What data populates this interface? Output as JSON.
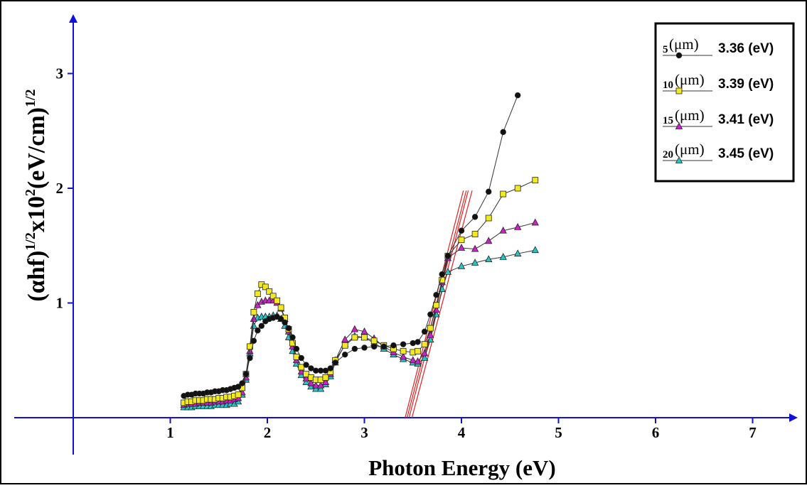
{
  "chart_data": {
    "type": "scatter",
    "xlabel": "Photon Energy (eV)",
    "ylabel": {
      "base": "(αhf)",
      "sup1": "1/2",
      "mid": "x10",
      "sup2": "2",
      "end": "(eV/cm)",
      "sup3": "1/2"
    },
    "xlim": [
      0,
      7.5
    ],
    "ylim": [
      0,
      3.5
    ],
    "x_ticks": [
      "1",
      "2",
      "3",
      "4",
      "5",
      "6",
      "7"
    ],
    "y_ticks": [
      "1",
      "2",
      "3"
    ],
    "legend_position": "top-right",
    "series": [
      {
        "name": "5",
        "unit": "(μm)",
        "gap_label": "3.36 (eV)",
        "color": "#111111",
        "marker": "circle",
        "x": [
          1.14,
          1.18,
          1.22,
          1.26,
          1.3,
          1.34,
          1.38,
          1.42,
          1.46,
          1.5,
          1.54,
          1.58,
          1.62,
          1.66,
          1.7,
          1.74,
          1.78,
          1.82,
          1.86,
          1.9,
          1.94,
          1.98,
          2.02,
          2.06,
          2.1,
          2.14,
          2.18,
          2.22,
          2.26,
          2.3,
          2.35,
          2.4,
          2.45,
          2.5,
          2.55,
          2.6,
          2.65,
          2.7,
          2.8,
          2.9,
          3.0,
          3.1,
          3.2,
          3.3,
          3.4,
          3.5,
          3.55,
          3.62,
          3.68,
          3.74,
          3.8,
          3.86,
          4.0,
          4.14,
          4.28,
          4.43,
          4.58
        ],
        "y": [
          0.19,
          0.2,
          0.2,
          0.21,
          0.21,
          0.21,
          0.22,
          0.22,
          0.23,
          0.23,
          0.24,
          0.24,
          0.25,
          0.26,
          0.27,
          0.3,
          0.38,
          0.52,
          0.67,
          0.76,
          0.8,
          0.84,
          0.86,
          0.87,
          0.88,
          0.86,
          0.83,
          0.78,
          0.7,
          0.6,
          0.52,
          0.46,
          0.43,
          0.41,
          0.41,
          0.41,
          0.43,
          0.48,
          0.55,
          0.6,
          0.61,
          0.62,
          0.62,
          0.63,
          0.64,
          0.65,
          0.66,
          0.75,
          0.9,
          1.07,
          1.25,
          1.41,
          1.63,
          1.75,
          1.97,
          2.49,
          2.81
        ]
      },
      {
        "name": "10",
        "unit": "(μm)",
        "gap_label": "3.39 (eV)",
        "color": "#f2ea1c",
        "marker": "square",
        "x": [
          1.14,
          1.18,
          1.22,
          1.26,
          1.3,
          1.34,
          1.38,
          1.42,
          1.46,
          1.5,
          1.54,
          1.58,
          1.62,
          1.66,
          1.7,
          1.74,
          1.78,
          1.82,
          1.86,
          1.9,
          1.94,
          1.98,
          2.02,
          2.06,
          2.1,
          2.14,
          2.18,
          2.22,
          2.26,
          2.3,
          2.35,
          2.4,
          2.45,
          2.5,
          2.55,
          2.6,
          2.65,
          2.7,
          2.8,
          2.9,
          3.0,
          3.1,
          3.2,
          3.3,
          3.4,
          3.5,
          3.55,
          3.62,
          3.68,
          3.74,
          3.8,
          3.86,
          4.0,
          4.14,
          4.28,
          4.43,
          4.58,
          4.76
        ],
        "y": [
          0.13,
          0.14,
          0.14,
          0.15,
          0.15,
          0.15,
          0.16,
          0.16,
          0.16,
          0.17,
          0.17,
          0.18,
          0.18,
          0.19,
          0.2,
          0.26,
          0.38,
          0.62,
          0.92,
          1.08,
          1.16,
          1.14,
          1.1,
          1.06,
          1.02,
          0.96,
          0.87,
          0.77,
          0.65,
          0.53,
          0.44,
          0.38,
          0.35,
          0.33,
          0.33,
          0.35,
          0.4,
          0.5,
          0.63,
          0.7,
          0.7,
          0.67,
          0.63,
          0.6,
          0.58,
          0.57,
          0.58,
          0.64,
          0.78,
          0.98,
          1.2,
          1.41,
          1.55,
          1.6,
          1.74,
          1.95,
          2.0,
          2.07
        ]
      },
      {
        "name": "15",
        "unit": "(μm)",
        "gap_label": "3.41 (eV)",
        "color": "#cc20cc",
        "marker": "triangle",
        "x": [
          1.14,
          1.18,
          1.22,
          1.26,
          1.3,
          1.34,
          1.38,
          1.42,
          1.46,
          1.5,
          1.54,
          1.58,
          1.62,
          1.66,
          1.7,
          1.74,
          1.78,
          1.82,
          1.86,
          1.9,
          1.94,
          1.98,
          2.02,
          2.06,
          2.1,
          2.14,
          2.18,
          2.22,
          2.26,
          2.3,
          2.35,
          2.4,
          2.45,
          2.5,
          2.55,
          2.6,
          2.65,
          2.7,
          2.8,
          2.9,
          3.0,
          3.1,
          3.2,
          3.3,
          3.4,
          3.5,
          3.55,
          3.62,
          3.68,
          3.74,
          3.8,
          3.86,
          4.0,
          4.14,
          4.28,
          4.43,
          4.58,
          4.76
        ],
        "y": [
          0.11,
          0.12,
          0.12,
          0.12,
          0.13,
          0.13,
          0.13,
          0.13,
          0.14,
          0.14,
          0.14,
          0.15,
          0.15,
          0.16,
          0.17,
          0.22,
          0.35,
          0.58,
          0.86,
          0.98,
          1.01,
          1.02,
          1.02,
          1.02,
          1.0,
          0.95,
          0.86,
          0.75,
          0.62,
          0.5,
          0.4,
          0.34,
          0.3,
          0.28,
          0.28,
          0.31,
          0.38,
          0.5,
          0.68,
          0.77,
          0.75,
          0.69,
          0.62,
          0.57,
          0.53,
          0.5,
          0.49,
          0.56,
          0.72,
          0.94,
          1.18,
          1.39,
          1.48,
          1.47,
          1.54,
          1.63,
          1.66,
          1.7
        ]
      },
      {
        "name": "20",
        "unit": "(μm)",
        "gap_label": "3.45 (eV)",
        "color": "#27c4c4",
        "marker": "triangle",
        "x": [
          1.14,
          1.18,
          1.22,
          1.26,
          1.3,
          1.34,
          1.38,
          1.42,
          1.46,
          1.5,
          1.54,
          1.58,
          1.62,
          1.66,
          1.7,
          1.74,
          1.78,
          1.82,
          1.86,
          1.9,
          1.94,
          1.98,
          2.02,
          2.06,
          2.1,
          2.14,
          2.18,
          2.22,
          2.26,
          2.3,
          2.35,
          2.4,
          2.45,
          2.5,
          2.55,
          2.6,
          2.65,
          2.7,
          2.8,
          2.9,
          3.0,
          3.1,
          3.2,
          3.3,
          3.4,
          3.5,
          3.55,
          3.62,
          3.68,
          3.74,
          3.8,
          3.86,
          4.0,
          4.14,
          4.28,
          4.43,
          4.58,
          4.76
        ],
        "y": [
          0.09,
          0.09,
          0.09,
          0.1,
          0.1,
          0.1,
          0.1,
          0.1,
          0.11,
          0.11,
          0.11,
          0.11,
          0.12,
          0.12,
          0.14,
          0.2,
          0.33,
          0.56,
          0.8,
          0.87,
          0.88,
          0.88,
          0.88,
          0.89,
          0.89,
          0.86,
          0.8,
          0.7,
          0.58,
          0.47,
          0.37,
          0.31,
          0.27,
          0.25,
          0.25,
          0.29,
          0.36,
          0.48,
          0.64,
          0.71,
          0.7,
          0.65,
          0.6,
          0.55,
          0.51,
          0.48,
          0.47,
          0.52,
          0.68,
          0.9,
          1.12,
          1.27,
          1.32,
          1.35,
          1.38,
          1.4,
          1.43,
          1.46
        ]
      }
    ],
    "fit_lines": {
      "color": "#e02020",
      "lines": [
        {
          "x": [
            3.42,
            4.02
          ],
          "y": [
            0,
            1.98
          ]
        },
        {
          "x": [
            3.44,
            4.05
          ],
          "y": [
            0,
            1.98
          ]
        },
        {
          "x": [
            3.46,
            4.07
          ],
          "y": [
            0,
            1.98
          ]
        },
        {
          "x": [
            3.49,
            4.11
          ],
          "y": [
            0,
            1.98
          ]
        }
      ]
    }
  }
}
